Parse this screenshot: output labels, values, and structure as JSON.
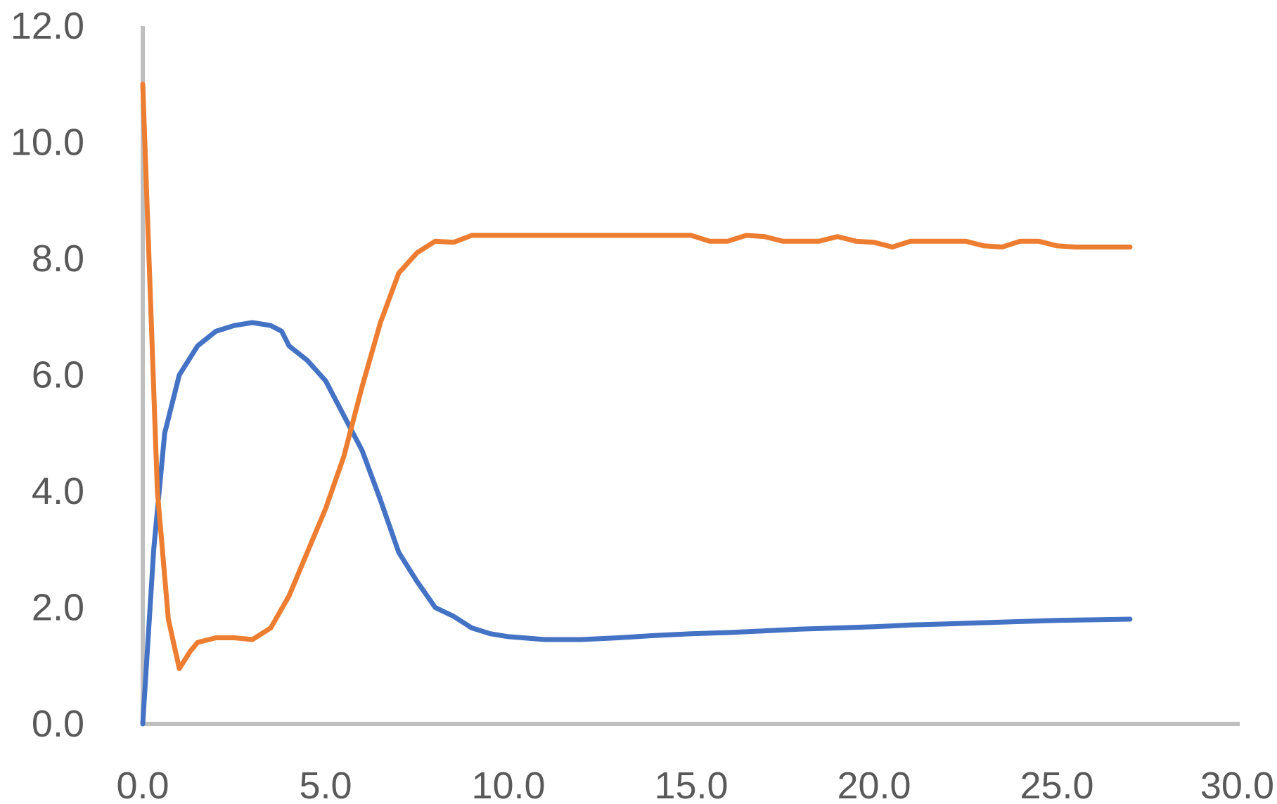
{
  "chart_data": {
    "type": "line",
    "title": "",
    "xlabel": "",
    "ylabel": "",
    "xlim": [
      0,
      30
    ],
    "ylim": [
      0,
      12
    ],
    "grid": false,
    "legend": "none",
    "x_ticks": [
      "0.0",
      "5.0",
      "10.0",
      "15.0",
      "20.0",
      "25.0",
      "30.0"
    ],
    "y_ticks": [
      "0.0",
      "2.0",
      "4.0",
      "6.0",
      "8.0",
      "10.0",
      "12.0"
    ],
    "series": [
      {
        "color": "#4472C4",
        "points": [
          [
            0.0,
            0.0
          ],
          [
            0.3,
            3.0
          ],
          [
            0.6,
            5.0
          ],
          [
            1.0,
            6.0
          ],
          [
            1.5,
            6.5
          ],
          [
            2.0,
            6.75
          ],
          [
            2.5,
            6.85
          ],
          [
            3.0,
            6.9
          ],
          [
            3.5,
            6.85
          ],
          [
            3.8,
            6.75
          ],
          [
            4.0,
            6.5
          ],
          [
            4.5,
            6.25
          ],
          [
            5.0,
            5.9
          ],
          [
            5.5,
            5.3
          ],
          [
            6.0,
            4.7
          ],
          [
            6.5,
            3.85
          ],
          [
            7.0,
            2.95
          ],
          [
            7.5,
            2.45
          ],
          [
            8.0,
            2.0
          ],
          [
            8.5,
            1.85
          ],
          [
            9.0,
            1.65
          ],
          [
            9.5,
            1.55
          ],
          [
            10.0,
            1.5
          ],
          [
            11.0,
            1.45
          ],
          [
            12.0,
            1.45
          ],
          [
            13.0,
            1.48
          ],
          [
            14.0,
            1.52
          ],
          [
            15.0,
            1.55
          ],
          [
            16.0,
            1.57
          ],
          [
            17.0,
            1.6
          ],
          [
            18.0,
            1.63
          ],
          [
            19.0,
            1.65
          ],
          [
            20.0,
            1.67
          ],
          [
            21.0,
            1.7
          ],
          [
            22.0,
            1.72
          ],
          [
            23.0,
            1.74
          ],
          [
            24.0,
            1.76
          ],
          [
            25.0,
            1.78
          ],
          [
            26.0,
            1.79
          ],
          [
            27.0,
            1.8
          ]
        ]
      },
      {
        "color": "#ED7D31",
        "points": [
          [
            0.0,
            11.0
          ],
          [
            0.2,
            7.5
          ],
          [
            0.4,
            4.0
          ],
          [
            0.7,
            1.8
          ],
          [
            1.0,
            0.95
          ],
          [
            1.3,
            1.25
          ],
          [
            1.5,
            1.4
          ],
          [
            2.0,
            1.48
          ],
          [
            2.5,
            1.48
          ],
          [
            3.0,
            1.45
          ],
          [
            3.5,
            1.65
          ],
          [
            4.0,
            2.2
          ],
          [
            4.5,
            2.95
          ],
          [
            5.0,
            3.7
          ],
          [
            5.5,
            4.6
          ],
          [
            6.0,
            5.8
          ],
          [
            6.5,
            6.9
          ],
          [
            7.0,
            7.75
          ],
          [
            7.5,
            8.1
          ],
          [
            8.0,
            8.3
          ],
          [
            8.5,
            8.28
          ],
          [
            9.0,
            8.4
          ],
          [
            10.0,
            8.4
          ],
          [
            11.0,
            8.4
          ],
          [
            12.0,
            8.4
          ],
          [
            13.0,
            8.4
          ],
          [
            14.0,
            8.4
          ],
          [
            15.0,
            8.4
          ],
          [
            15.5,
            8.3
          ],
          [
            16.0,
            8.3
          ],
          [
            16.5,
            8.4
          ],
          [
            17.0,
            8.38
          ],
          [
            17.5,
            8.3
          ],
          [
            18.0,
            8.3
          ],
          [
            18.5,
            8.3
          ],
          [
            19.0,
            8.38
          ],
          [
            19.5,
            8.3
          ],
          [
            20.0,
            8.28
          ],
          [
            20.5,
            8.2
          ],
          [
            21.0,
            8.3
          ],
          [
            21.5,
            8.3
          ],
          [
            22.0,
            8.3
          ],
          [
            22.5,
            8.3
          ],
          [
            23.0,
            8.22
          ],
          [
            23.5,
            8.2
          ],
          [
            24.0,
            8.3
          ],
          [
            24.5,
            8.3
          ],
          [
            25.0,
            8.22
          ],
          [
            25.5,
            8.2
          ],
          [
            26.0,
            8.2
          ],
          [
            27.0,
            8.2
          ]
        ]
      }
    ]
  }
}
